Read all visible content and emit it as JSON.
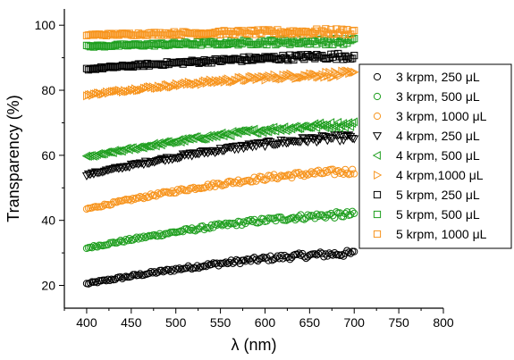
{
  "chart_data": {
    "type": "scatter",
    "xlabel": "λ (nm)",
    "ylabel": "Transparency (%)",
    "xlim": [
      375,
      800
    ],
    "ylim": [
      13,
      105
    ],
    "x_ticks": [
      400,
      450,
      500,
      550,
      600,
      650,
      700,
      750,
      800
    ],
    "y_ticks": [
      20,
      40,
      60,
      80,
      100
    ],
    "legend_position": "right",
    "grid": false,
    "x_range": [
      400,
      700
    ],
    "series": [
      {
        "name": "3 krpm, 250 μL",
        "marker": "circle",
        "color": "#000000",
        "start": 20.5,
        "end": 29.8
      },
      {
        "name": "3 krpm, 500 μL",
        "marker": "circle",
        "color": "#1e9e1e",
        "start": 31.5,
        "end": 41.8
      },
      {
        "name": "3 krpm, 1000 μL",
        "marker": "circle",
        "color": "#f7941d",
        "start": 43.5,
        "end": 55.0
      },
      {
        "name": "4 krpm, 250 μL",
        "marker": "triangle-down",
        "color": "#000000",
        "start": 54.0,
        "end": 65.5
      },
      {
        "name": "4 krpm, 500 μL",
        "marker": "triangle-left",
        "color": "#1e9e1e",
        "start": 59.5,
        "end": 69.5
      },
      {
        "name": "4 krpm,1000 μL",
        "marker": "triangle-right",
        "color": "#f7941d",
        "start": 78.5,
        "end": 85.0
      },
      {
        "name": "5 krpm, 250 μL",
        "marker": "square",
        "color": "#000000",
        "start": 86.5,
        "end": 90.5
      },
      {
        "name": "5 krpm, 500 μL",
        "marker": "square",
        "color": "#1e9e1e",
        "start": 93.5,
        "end": 95.0
      },
      {
        "name": "5 krpm, 1000 μL",
        "marker": "square",
        "color": "#f7941d",
        "start": 97.0,
        "end": 98.0
      }
    ]
  }
}
